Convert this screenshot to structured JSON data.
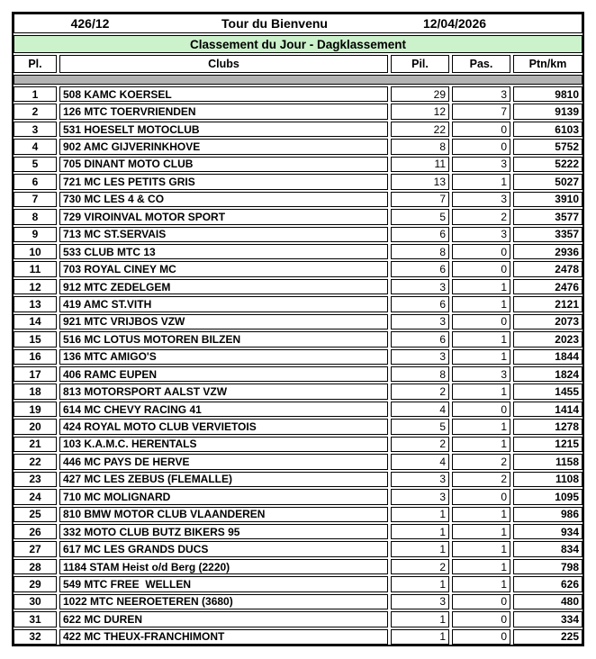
{
  "header": {
    "event_number": "426/12",
    "event_name": "Tour du Bienvenu",
    "event_date": "12/04/2026",
    "banner": "Classement du Jour - Dagklassement"
  },
  "columns": {
    "pl": "Pl.",
    "clubs": "Clubs",
    "pil": "Pil.",
    "pas": "Pas.",
    "ptn": "Ptn/km"
  },
  "colors": {
    "banner_bg": "#ccf2cc",
    "separator_bg": "#b3b3b3",
    "border": "#000000"
  },
  "rows": [
    {
      "pl": "1",
      "club": "508 KAMC KOERSEL",
      "pil": "29",
      "pas": "3",
      "ptn": "9810"
    },
    {
      "pl": "2",
      "club": "126 MTC TOERVRIENDEN",
      "pil": "12",
      "pas": "7",
      "ptn": "9139"
    },
    {
      "pl": "3",
      "club": "531 HOESELT MOTOCLUB",
      "pil": "22",
      "pas": "0",
      "ptn": "6103"
    },
    {
      "pl": "4",
      "club": "902 AMC GIJVERINKHOVE",
      "pil": "8",
      "pas": "0",
      "ptn": "5752"
    },
    {
      "pl": "5",
      "club": "705 DINANT MOTO CLUB",
      "pil": "11",
      "pas": "3",
      "ptn": "5222"
    },
    {
      "pl": "6",
      "club": "721 MC LES PETITS GRIS",
      "pil": "13",
      "pas": "1",
      "ptn": "5027"
    },
    {
      "pl": "7",
      "club": "730 MC LES 4 & CO",
      "pil": "7",
      "pas": "3",
      "ptn": "3910"
    },
    {
      "pl": "8",
      "club": "729 VIROINVAL MOTOR SPORT",
      "pil": "5",
      "pas": "2",
      "ptn": "3577"
    },
    {
      "pl": "9",
      "club": "713 MC ST.SERVAIS",
      "pil": "6",
      "pas": "3",
      "ptn": "3357"
    },
    {
      "pl": "10",
      "club": "533 CLUB MTC 13",
      "pil": "8",
      "pas": "0",
      "ptn": "2936"
    },
    {
      "pl": "11",
      "club": "703 ROYAL CINEY MC",
      "pil": "6",
      "pas": "0",
      "ptn": "2478"
    },
    {
      "pl": "12",
      "club": "912 MTC ZEDELGEM",
      "pil": "3",
      "pas": "1",
      "ptn": "2476"
    },
    {
      "pl": "13",
      "club": "419 AMC ST.VITH",
      "pil": "6",
      "pas": "1",
      "ptn": "2121"
    },
    {
      "pl": "14",
      "club": "921 MTC VRIJBOS VZW",
      "pil": "3",
      "pas": "0",
      "ptn": "2073"
    },
    {
      "pl": "15",
      "club": "516 MC LOTUS MOTOREN BILZEN",
      "pil": "6",
      "pas": "1",
      "ptn": "2023"
    },
    {
      "pl": "16",
      "club": "136 MTC AMIGO'S",
      "pil": "3",
      "pas": "1",
      "ptn": "1844"
    },
    {
      "pl": "17",
      "club": "406 RAMC EUPEN",
      "pil": "8",
      "pas": "3",
      "ptn": "1824"
    },
    {
      "pl": "18",
      "club": "813 MOTORSPORT AALST VZW",
      "pil": "2",
      "pas": "1",
      "ptn": "1455"
    },
    {
      "pl": "19",
      "club": "614 MC CHEVY RACING 41",
      "pil": "4",
      "pas": "0",
      "ptn": "1414"
    },
    {
      "pl": "20",
      "club": "424 ROYAL MOTO CLUB VERVIETOIS",
      "pil": "5",
      "pas": "1",
      "ptn": "1278"
    },
    {
      "pl": "21",
      "club": "103 K.A.M.C. HERENTALS",
      "pil": "2",
      "pas": "1",
      "ptn": "1215"
    },
    {
      "pl": "22",
      "club": "446 MC PAYS DE HERVE",
      "pil": "4",
      "pas": "2",
      "ptn": "1158"
    },
    {
      "pl": "23",
      "club": "427 MC LES ZEBUS (FLEMALLE)",
      "pil": "3",
      "pas": "2",
      "ptn": "1108"
    },
    {
      "pl": "24",
      "club": "710 MC MOLIGNARD",
      "pil": "3",
      "pas": "0",
      "ptn": "1095"
    },
    {
      "pl": "25",
      "club": "810 BMW MOTOR CLUB VLAANDEREN",
      "pil": "1",
      "pas": "1",
      "ptn": "986"
    },
    {
      "pl": "26",
      "club": "332 MOTO CLUB BUTZ BIKERS 95",
      "pil": "1",
      "pas": "1",
      "ptn": "934"
    },
    {
      "pl": "27",
      "club": "617 MC LES GRANDS DUCS",
      "pil": "1",
      "pas": "1",
      "ptn": "834"
    },
    {
      "pl": "28",
      "club": "1184 STAM Heist o/d Berg (2220)",
      "pil": "2",
      "pas": "1",
      "ptn": "798"
    },
    {
      "pl": "29",
      "club": "549 MTC FREE  WELLEN",
      "pil": "1",
      "pas": "1",
      "ptn": "626"
    },
    {
      "pl": "30",
      "club": "1022 MTC NEEROETEREN (3680)",
      "pil": "3",
      "pas": "0",
      "ptn": "480"
    },
    {
      "pl": "31",
      "club": "622 MC DUREN",
      "pil": "1",
      "pas": "0",
      "ptn": "334"
    },
    {
      "pl": "32",
      "club": "422 MC THEUX-FRANCHIMONT",
      "pil": "1",
      "pas": "0",
      "ptn": "225"
    }
  ]
}
